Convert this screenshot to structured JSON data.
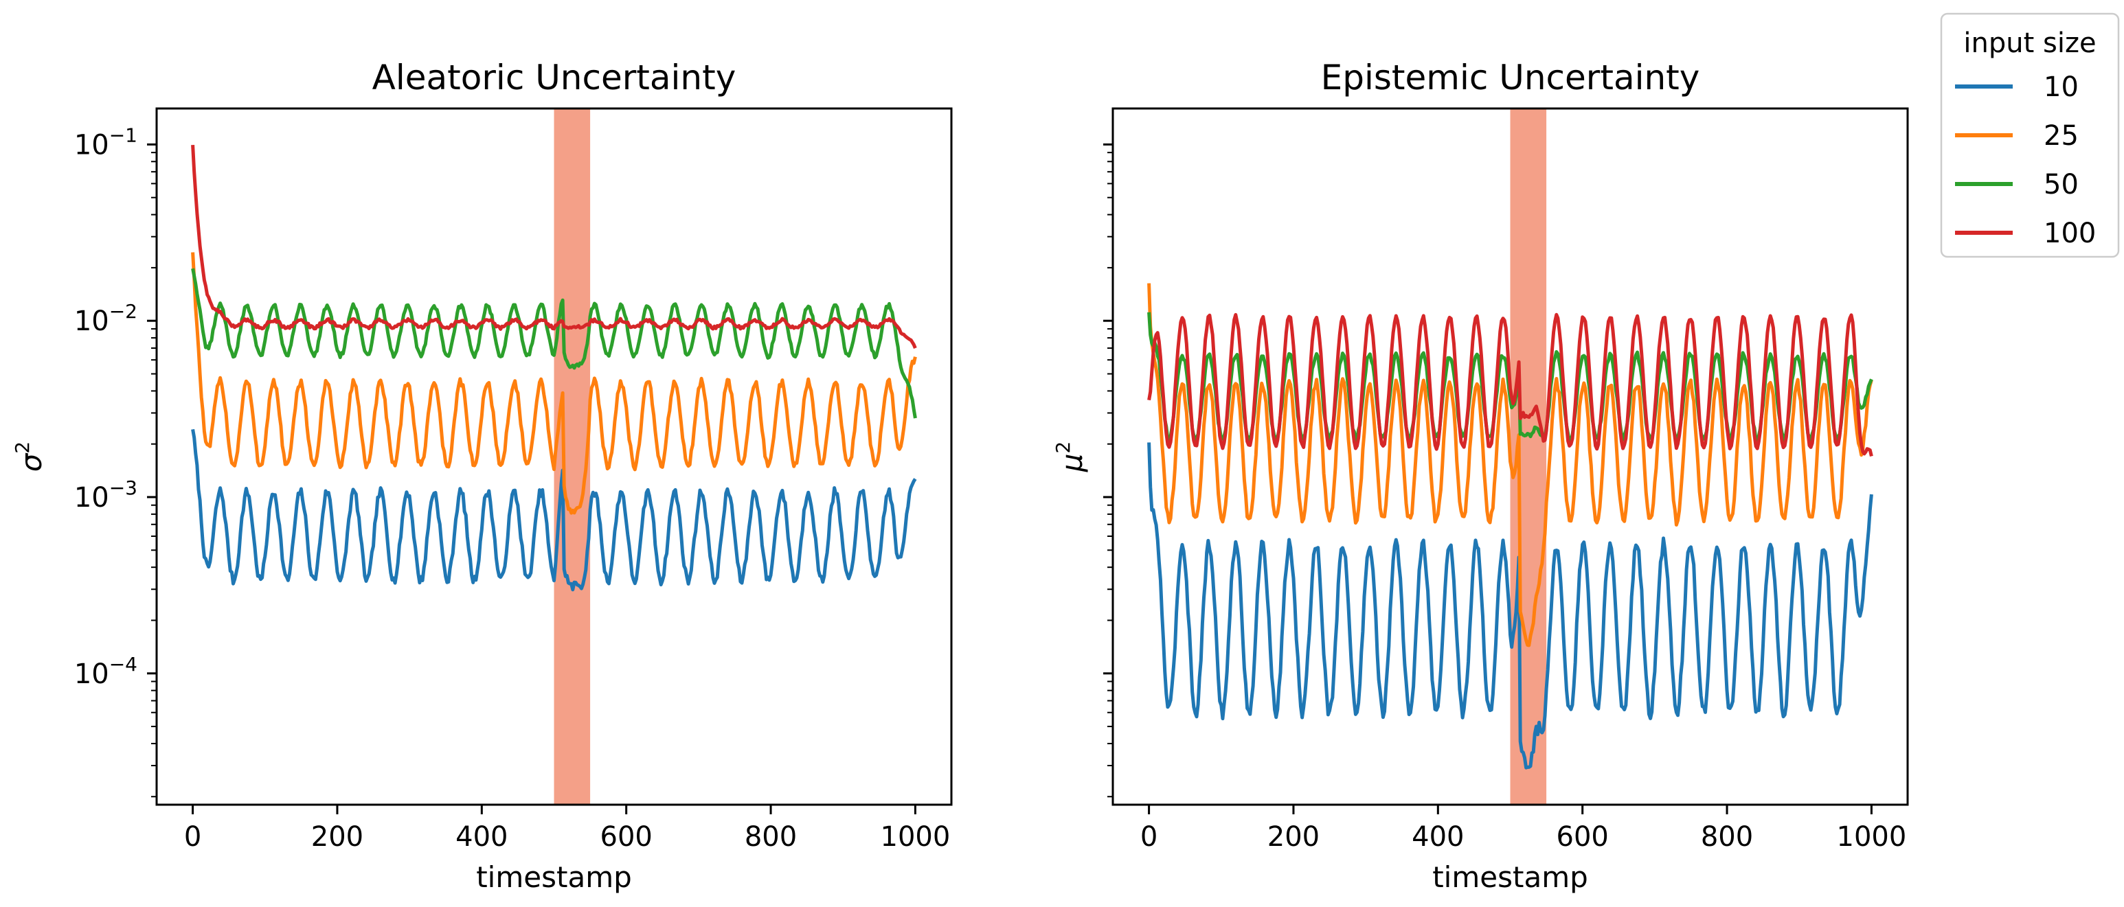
{
  "figure": {
    "legend": {
      "title": "input size",
      "placement": "upper-right outside",
      "entries": [
        {
          "label": "10",
          "color": "#1f77b4"
        },
        {
          "label": "25",
          "color": "#ff7f0e"
        },
        {
          "label": "50",
          "color": "#2ca02c"
        },
        {
          "label": "100",
          "color": "#d62728"
        }
      ]
    }
  },
  "chart_data": [
    {
      "type": "line",
      "title": "Aleatoric Uncertainty",
      "xlabel": "timestamp",
      "ylabel": "σ",
      "ylabel_sup": "2",
      "yscale": "log",
      "xlim": [
        -50,
        1050
      ],
      "ylim": [
        1.8e-05,
        0.16
      ],
      "xticks": [
        0,
        200,
        400,
        600,
        800,
        1000
      ],
      "yticks": [
        {
          "value": 0.0001,
          "base": "10",
          "exp": "−4"
        },
        {
          "value": 0.001,
          "base": "10",
          "exp": "−3"
        },
        {
          "value": 0.01,
          "base": "10",
          "exp": "−2"
        },
        {
          "value": 0.1,
          "base": "10",
          "exp": "−1"
        }
      ],
      "ytick_labels_visible": true,
      "highlight_span": {
        "x0": 500,
        "x1": 550,
        "color": "#f4a088"
      },
      "grid": false,
      "series": [
        {
          "name": "10",
          "color": "#1f77b4",
          "base": 0.0006,
          "amp": 0.58,
          "period": 37,
          "phase": 1.4,
          "start": 0.0025,
          "decay": 8,
          "end": 0.0013,
          "noise": 0.06,
          "span_dip": 0.00031,
          "span_peak": 0.0018
        },
        {
          "name": "25",
          "color": "#ff7f0e",
          "base": 0.0026,
          "amp": 0.55,
          "period": 37,
          "phase": 1.4,
          "start": 0.025,
          "decay": 8,
          "end": 0.006,
          "noise": 0.05,
          "span_dip": 0.0008,
          "span_peak": 0.0042
        },
        {
          "name": "50",
          "color": "#2ca02c",
          "base": 0.0088,
          "amp": 0.33,
          "period": 37,
          "phase": 1.4,
          "start": 0.02,
          "decay": 8,
          "end": 0.0028,
          "noise": 0.03,
          "span_dip": 0.0055,
          "span_peak": 0.015
        },
        {
          "name": "100",
          "color": "#d62728",
          "base": 0.0096,
          "amp": 0.05,
          "period": 37,
          "phase": 1.4,
          "start": 0.1,
          "decay": 12,
          "end": 0.0071,
          "noise": 0.02,
          "span_dip": 0.0092,
          "span_peak": 0.0102
        }
      ]
    },
    {
      "type": "line",
      "title": "Epistemic Uncertainty",
      "xlabel": "timestamp",
      "ylabel": "μ",
      "ylabel_sup": "2",
      "yscale": "log",
      "xlim": [
        -50,
        1050
      ],
      "ylim": [
        1.8e-05,
        0.16
      ],
      "xticks": [
        0,
        200,
        400,
        600,
        800,
        1000
      ],
      "yticks": [
        {
          "value": 0.0001,
          "base": "",
          "exp": ""
        },
        {
          "value": 0.001,
          "base": "",
          "exp": ""
        },
        {
          "value": 0.01,
          "base": "",
          "exp": ""
        },
        {
          "value": 0.1,
          "base": "",
          "exp": ""
        }
      ],
      "ytick_labels_visible": false,
      "highlight_span": {
        "x0": 500,
        "x1": 550,
        "color": "#f4a088"
      },
      "grid": false,
      "series": [
        {
          "name": "10",
          "color": "#1f77b4",
          "base": 0.00018,
          "amp": 1.1,
          "period": 37,
          "phase": 0.0,
          "start": 0.002,
          "decay": 6,
          "end": 0.001,
          "noise": 0.08,
          "span_dip": 3e-05,
          "span_peak": 0.001
        },
        {
          "name": "25",
          "color": "#ff7f0e",
          "base": 0.0018,
          "amp": 0.9,
          "period": 37,
          "phase": 0.0,
          "start": 0.016,
          "decay": 6,
          "end": 0.0047,
          "noise": 0.06,
          "span_dip": 0.00015,
          "span_peak": 0.0035
        },
        {
          "name": "50",
          "color": "#2ca02c",
          "base": 0.0037,
          "amp": 0.55,
          "period": 37,
          "phase": 0.0,
          "start": 0.011,
          "decay": 6,
          "end": 0.0045,
          "noise": 0.04,
          "span_dip": 0.0022,
          "span_peak": 0.007
        },
        {
          "name": "100",
          "color": "#d62728",
          "base": 0.0045,
          "amp": 0.85,
          "period": 37,
          "phase": 0.0,
          "start": 0.0035,
          "decay": 6,
          "end": 0.0017,
          "noise": 0.03,
          "span_dip": 0.0028,
          "span_peak": 0.0095
        }
      ]
    }
  ]
}
